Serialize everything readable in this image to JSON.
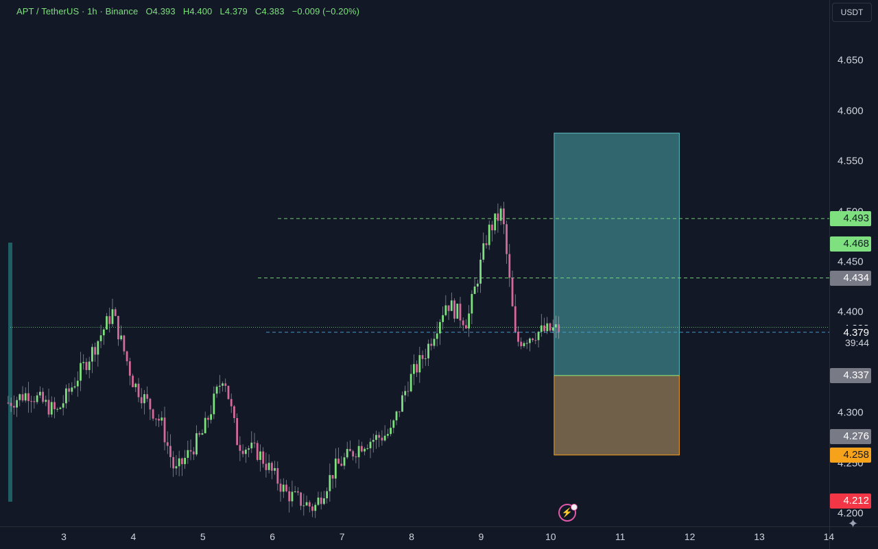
{
  "legend": {
    "symbol": "APT / TetherUS · 1h · Binance",
    "open": "O4.393",
    "high": "H4.400",
    "low": "L4.379",
    "close": "C4.383",
    "change": "−0.009 (−0.20%)"
  },
  "currency_button": "USDT",
  "price_ticks": [
    "4.650",
    "4.600",
    "4.550",
    "4.500",
    "4.450",
    "4.400",
    "4.300",
    "4.250",
    "4.200"
  ],
  "price_tags": [
    {
      "label": "4.493",
      "value": 4.493,
      "bg": "#7ee07e",
      "fg": "#131826"
    },
    {
      "label": "4.468",
      "value": 4.468,
      "bg": "#7ee07e",
      "fg": "#131826"
    },
    {
      "label": "4.434",
      "value": 4.434,
      "bg": "#787b86",
      "fg": "#ffffff"
    },
    {
      "label": "4.383",
      "value": 4.383,
      "bg": "#131826",
      "fg": "#ffffff"
    },
    {
      "label": "4.379",
      "value": 4.379,
      "bg": "#131826",
      "fg": "#ffffff"
    },
    {
      "label": "4.337",
      "value": 4.337,
      "bg": "#787b86",
      "fg": "#ffffff"
    },
    {
      "label": "4.276",
      "value": 4.276,
      "bg": "#787b86",
      "fg": "#ffffff"
    },
    {
      "label": "4.258",
      "value": 4.258,
      "bg": "#f7a21b",
      "fg": "#131826"
    },
    {
      "label": "4.212",
      "value": 4.212,
      "bg": "#f23645",
      "fg": "#ffffff"
    }
  ],
  "countdown": "39:44",
  "time_labels": [
    "3",
    "4",
    "5",
    "6",
    "7",
    "8",
    "9",
    "10",
    "11",
    "12",
    "13",
    "14"
  ],
  "chart_data": {
    "type": "candlestick",
    "symbol": "APT / TetherUS",
    "interval": "1h",
    "exchange": "Binance",
    "ylim": [
      4.19,
      4.68
    ],
    "x_days": [
      3,
      4,
      5,
      6,
      7,
      8,
      9,
      10,
      11,
      12,
      13,
      14
    ],
    "last_price": 4.383,
    "close_path_daily": [
      {
        "day": 2.2,
        "price": 4.31
      },
      {
        "day": 2.5,
        "price": 4.32
      },
      {
        "day": 2.9,
        "price": 4.3
      },
      {
        "day": 3.4,
        "price": 4.36
      },
      {
        "day": 3.7,
        "price": 4.4
      },
      {
        "day": 4.0,
        "price": 4.33
      },
      {
        "day": 4.4,
        "price": 4.29
      },
      {
        "day": 4.6,
        "price": 4.24
      },
      {
        "day": 5.0,
        "price": 4.28
      },
      {
        "day": 5.3,
        "price": 4.34
      },
      {
        "day": 5.5,
        "price": 4.27
      },
      {
        "day": 5.8,
        "price": 4.26
      },
      {
        "day": 6.2,
        "price": 4.22
      },
      {
        "day": 6.6,
        "price": 4.205
      },
      {
        "day": 6.9,
        "price": 4.245
      },
      {
        "day": 7.3,
        "price": 4.27
      },
      {
        "day": 7.7,
        "price": 4.28
      },
      {
        "day": 7.95,
        "price": 4.33
      },
      {
        "day": 8.2,
        "price": 4.36
      },
      {
        "day": 8.5,
        "price": 4.41
      },
      {
        "day": 8.8,
        "price": 4.39
      },
      {
        "day": 9.1,
        "price": 4.48
      },
      {
        "day": 9.3,
        "price": 4.5
      },
      {
        "day": 9.5,
        "price": 4.37
      },
      {
        "day": 9.8,
        "price": 4.38
      },
      {
        "day": 10.1,
        "price": 4.383
      }
    ],
    "horizontal_lines": [
      {
        "price": 4.493,
        "style": "dashed",
        "color": "#7ee07e"
      },
      {
        "price": 4.434,
        "style": "dashed",
        "color": "#7ee07e"
      },
      {
        "price": 4.385,
        "style": "dotted",
        "color": "#7ee07e"
      },
      {
        "price": 4.38,
        "style": "dashed",
        "color": "#4aa3d9"
      }
    ],
    "position_tool": {
      "type": "long",
      "entry": 4.337,
      "target": 4.578,
      "stop": 4.258,
      "x_start_day": 10.05,
      "x_end_day": 11.85
    }
  }
}
